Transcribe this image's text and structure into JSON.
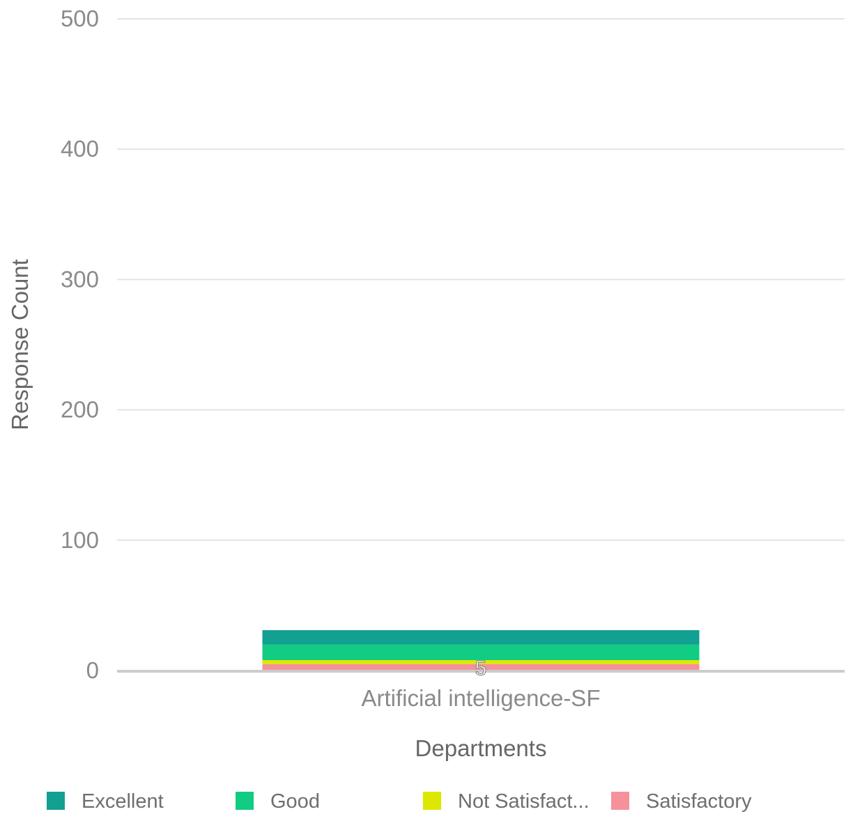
{
  "chart_data": {
    "type": "bar",
    "stacked": true,
    "categories": [
      "Artificial intelligence-SF"
    ],
    "series": [
      {
        "name": "Satisfactory",
        "values": [
          5
        ],
        "color": "#f5919b"
      },
      {
        "name": "Not Satisfact...",
        "values": [
          3
        ],
        "color": "#dde800"
      },
      {
        "name": "Good",
        "values": [
          12
        ],
        "color": "#11cc82"
      },
      {
        "name": "Excellent",
        "values": [
          11
        ],
        "color": "#11a092"
      }
    ],
    "data_labels": [
      {
        "series": "Satisfactory",
        "category": "Artificial intelligence-SF",
        "text": "5"
      }
    ],
    "xlabel": "Departments",
    "ylabel": "Response Count",
    "ylim": [
      0,
      500
    ],
    "yticks": [
      "0",
      "100",
      "200",
      "300",
      "400",
      "500"
    ],
    "grid": true,
    "legend_position": "bottom",
    "legend": [
      {
        "label": "Excellent",
        "color": "#11a092"
      },
      {
        "label": "Good",
        "color": "#11cc82"
      },
      {
        "label": "Not Satisfact...",
        "color": "#dde800"
      },
      {
        "label": "Satisfactory",
        "color": "#f5919b"
      }
    ],
    "gridline_color": "#e4e4e4",
    "axis_color": "#cccccc"
  }
}
